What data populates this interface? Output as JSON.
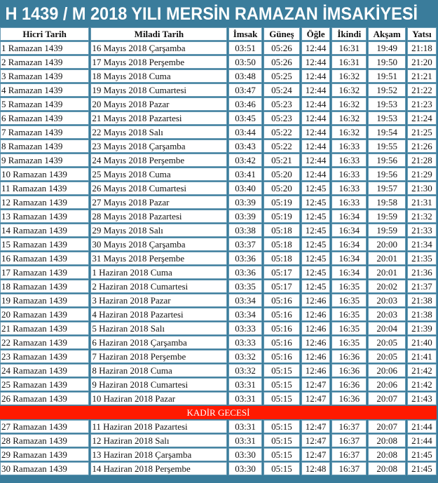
{
  "title": "H 1439 / M 2018 YILI MERSİN RAMAZAN İMSAKİYESİ",
  "colors": {
    "header_bg": "#3a7c9b",
    "kadir_bg": "#ff1a00",
    "cell_border": "#6b9cb5"
  },
  "columns": [
    "Hicri Tarih",
    "Miladi Tarih",
    "İmsak",
    "Güneş",
    "Öğle",
    "İkindi",
    "Akşam",
    "Yatsı"
  ],
  "kadir_label": "KADİR GECESİ",
  "rows": [
    [
      "1 Ramazan 1439",
      "16 Mayıs 2018 Çarşamba",
      "03:51",
      "05:26",
      "12:44",
      "16:31",
      "19:49",
      "21:18"
    ],
    [
      "2 Ramazan 1439",
      "17 Mayıs 2018 Perşembe",
      "03:50",
      "05:26",
      "12:44",
      "16:31",
      "19:50",
      "21:20"
    ],
    [
      "3 Ramazan 1439",
      "18 Mayıs 2018 Cuma",
      "03:48",
      "05:25",
      "12:44",
      "16:32",
      "19:51",
      "21:21"
    ],
    [
      "4 Ramazan 1439",
      "19 Mayıs 2018 Cumartesi",
      "03:47",
      "05:24",
      "12:44",
      "16:32",
      "19:52",
      "21:22"
    ],
    [
      "5 Ramazan 1439",
      "20 Mayıs 2018 Pazar",
      "03:46",
      "05:23",
      "12:44",
      "16:32",
      "19:53",
      "21:23"
    ],
    [
      "6 Ramazan 1439",
      "21 Mayıs 2018 Pazartesi",
      "03:45",
      "05:23",
      "12:44",
      "16:32",
      "19:53",
      "21:24"
    ],
    [
      "7 Ramazan 1439",
      "22 Mayıs 2018 Salı",
      "03:44",
      "05:22",
      "12:44",
      "16:32",
      "19:54",
      "21:25"
    ],
    [
      "8 Ramazan 1439",
      "23 Mayıs 2018 Çarşamba",
      "03:43",
      "05:22",
      "12:44",
      "16:33",
      "19:55",
      "21:26"
    ],
    [
      "9 Ramazan 1439",
      "24 Mayıs 2018 Perşembe",
      "03:42",
      "05:21",
      "12:44",
      "16:33",
      "19:56",
      "21:28"
    ],
    [
      "10 Ramazan 1439",
      "25 Mayıs 2018 Cuma",
      "03:41",
      "05:20",
      "12:44",
      "16:33",
      "19:56",
      "21:29"
    ],
    [
      "11 Ramazan 1439",
      "26 Mayıs 2018 Cumartesi",
      "03:40",
      "05:20",
      "12:45",
      "16:33",
      "19:57",
      "21:30"
    ],
    [
      "12 Ramazan 1439",
      "27 Mayıs 2018 Pazar",
      "03:39",
      "05:19",
      "12:45",
      "16:33",
      "19:58",
      "21:31"
    ],
    [
      "13 Ramazan 1439",
      "28 Mayıs 2018 Pazartesi",
      "03:39",
      "05:19",
      "12:45",
      "16:34",
      "19:59",
      "21:32"
    ],
    [
      "14 Ramazan 1439",
      "29 Mayıs 2018 Salı",
      "03:38",
      "05:18",
      "12:45",
      "16:34",
      "19:59",
      "21:33"
    ],
    [
      "15 Ramazan 1439",
      "30 Mayıs 2018 Çarşamba",
      "03:37",
      "05:18",
      "12:45",
      "16:34",
      "20:00",
      "21:34"
    ],
    [
      "16 Ramazan 1439",
      "31 Mayıs 2018 Perşembe",
      "03:36",
      "05:18",
      "12:45",
      "16:34",
      "20:01",
      "21:35"
    ],
    [
      "17 Ramazan 1439",
      "1 Haziran 2018 Cuma",
      "03:36",
      "05:17",
      "12:45",
      "16:34",
      "20:01",
      "21:36"
    ],
    [
      "18 Ramazan 1439",
      "2 Haziran 2018 Cumartesi",
      "03:35",
      "05:17",
      "12:45",
      "16:35",
      "20:02",
      "21:37"
    ],
    [
      "19 Ramazan 1439",
      "3 Haziran 2018 Pazar",
      "03:34",
      "05:16",
      "12:46",
      "16:35",
      "20:03",
      "21:38"
    ],
    [
      "20 Ramazan 1439",
      "4 Haziran 2018 Pazartesi",
      "03:34",
      "05:16",
      "12:46",
      "16:35",
      "20:03",
      "21:38"
    ],
    [
      "21 Ramazan 1439",
      "5 Haziran 2018 Salı",
      "03:33",
      "05:16",
      "12:46",
      "16:35",
      "20:04",
      "21:39"
    ],
    [
      "22 Ramazan 1439",
      "6 Haziran 2018 Çarşamba",
      "03:33",
      "05:16",
      "12:46",
      "16:35",
      "20:05",
      "21:40"
    ],
    [
      "23 Ramazan 1439",
      "7 Haziran 2018 Perşembe",
      "03:32",
      "05:16",
      "12:46",
      "16:36",
      "20:05",
      "21:41"
    ],
    [
      "24 Ramazan 1439",
      "8 Haziran 2018 Cuma",
      "03:32",
      "05:15",
      "12:46",
      "16:36",
      "20:06",
      "21:42"
    ],
    [
      "25 Ramazan 1439",
      "9 Haziran 2018 Cumartesi",
      "03:31",
      "05:15",
      "12:47",
      "16:36",
      "20:06",
      "21:42"
    ],
    [
      "26 Ramazan 1439",
      "10 Haziran 2018 Pazar",
      "03:31",
      "05:15",
      "12:47",
      "16:36",
      "20:07",
      "21:43"
    ],
    [
      "27 Ramazan 1439",
      "11 Haziran 2018 Pazartesi",
      "03:31",
      "05:15",
      "12:47",
      "16:37",
      "20:07",
      "21:44"
    ],
    [
      "28 Ramazan 1439",
      "12 Haziran 2018 Salı",
      "03:31",
      "05:15",
      "12:47",
      "16:37",
      "20:08",
      "21:44"
    ],
    [
      "29 Ramazan 1439",
      "13 Haziran 2018 Çarşamba",
      "03:30",
      "05:15",
      "12:47",
      "16:37",
      "20:08",
      "21:45"
    ],
    [
      "30 Ramazan 1439",
      "14 Haziran 2018 Perşembe",
      "03:30",
      "05:15",
      "12:48",
      "16:37",
      "20:08",
      "21:45"
    ]
  ]
}
